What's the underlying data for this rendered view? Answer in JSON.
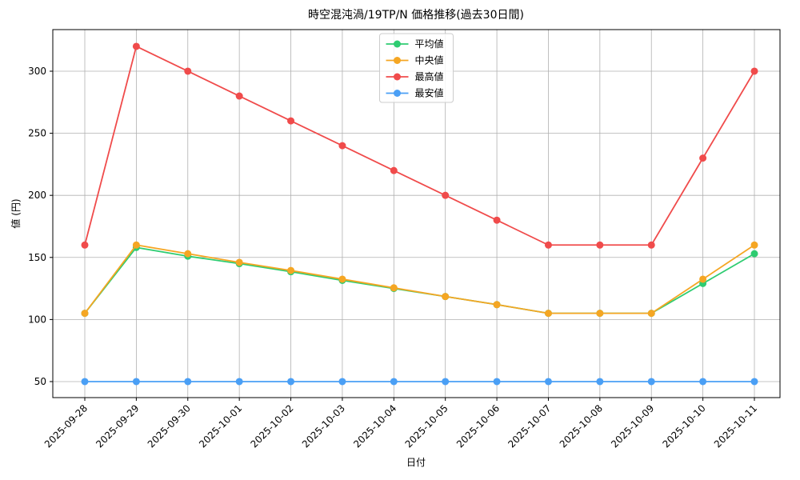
{
  "chart_data": {
    "type": "line",
    "title": "時空混沌渦/19TP/N 価格推移(過去30日間)",
    "x_label": "日付",
    "y_label": "値 (円)",
    "categories": [
      "2025-09-28",
      "2025-09-29",
      "2025-09-30",
      "2025-10-01",
      "2025-10-02",
      "2025-10-03",
      "2025-10-04",
      "2025-10-05",
      "2025-10-06",
      "2025-10-07",
      "2025-10-08",
      "2025-10-09",
      "2025-10-10",
      "2025-10-11"
    ],
    "series": [
      {
        "name": "平均値",
        "color": "#2ecc71",
        "values": [
          105,
          158,
          151,
          145,
          138.5,
          131.5,
          125,
          118.5,
          112,
          105,
          105,
          105,
          129,
          153
        ]
      },
      {
        "name": "中央値",
        "color": "#f5a623",
        "values": [
          105,
          160,
          153,
          146,
          139.5,
          132.5,
          125.5,
          118.5,
          112,
          105,
          105,
          105,
          132.5,
          160
        ]
      },
      {
        "name": "最高値",
        "color": "#f04b4b",
        "values": [
          160,
          320,
          300,
          280,
          260,
          240,
          220,
          200,
          180,
          160,
          160,
          160,
          230,
          300
        ]
      },
      {
        "name": "最安値",
        "color": "#4a9ff5",
        "values": [
          50,
          50,
          50,
          50,
          50,
          50,
          50,
          50,
          50,
          50,
          50,
          50,
          50,
          50
        ]
      }
    ],
    "ylim": [
      37.1,
      333.5
    ],
    "yticks": [
      50,
      100,
      150,
      200,
      250,
      300
    ],
    "grid": true,
    "legend": "upper center"
  }
}
